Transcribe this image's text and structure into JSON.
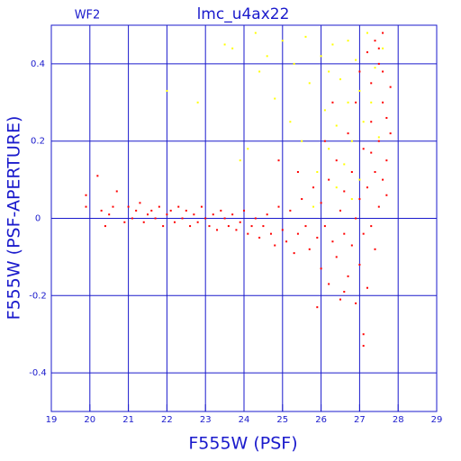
{
  "chart_data": {
    "type": "scatter",
    "title": "lmc_u4ax22",
    "annotation": "WF2",
    "xlabel": "F555W (PSF)",
    "ylabel": "F555W (PSF-APERTURE)",
    "xlim": [
      19,
      29
    ],
    "ylim": [
      -0.5,
      0.5
    ],
    "xticks": [
      19,
      20,
      21,
      22,
      23,
      24,
      25,
      26,
      27,
      28,
      29
    ],
    "yticks": [
      -0.4,
      -0.2,
      0,
      0.2,
      0.4
    ],
    "grid": true,
    "series": [
      {
        "color": "#ff0000",
        "x": [
          19.9,
          19.9,
          20.2,
          20.3,
          20.4,
          20.5,
          20.6,
          20.7,
          20.9,
          21.0,
          21.1,
          21.2,
          21.3,
          21.4,
          21.5,
          21.6,
          21.7,
          21.8,
          21.9,
          22.0,
          22.1,
          22.2,
          22.3,
          22.4,
          22.5,
          22.6,
          22.7,
          22.8,
          22.9,
          23.0,
          23.1,
          23.2,
          23.3,
          23.4,
          23.5,
          23.6,
          23.7,
          23.8,
          23.9,
          24.0,
          24.1,
          24.2,
          24.3,
          24.4,
          24.5,
          24.6,
          24.7,
          24.8,
          24.9,
          25.0,
          25.1,
          25.2,
          25.3,
          25.4,
          25.5,
          25.6,
          25.7,
          25.8,
          25.9,
          26.0,
          26.0,
          26.1,
          26.2,
          26.2,
          26.3,
          26.4,
          26.4,
          26.5,
          26.5,
          26.6,
          26.6,
          26.7,
          26.7,
          26.8,
          26.8,
          26.9,
          26.9,
          26.9,
          27.0,
          27.0,
          27.0,
          27.1,
          27.1,
          27.1,
          27.2,
          27.2,
          27.2,
          27.3,
          27.3,
          27.3,
          27.4,
          27.4,
          27.4,
          27.5,
          27.5,
          27.5,
          27.6,
          27.6,
          27.6,
          27.7,
          27.7,
          27.7,
          27.8,
          27.8,
          27.1,
          26.6,
          25.9,
          24.9,
          25.4,
          26.1,
          27.3,
          27.6,
          27.5,
          26.3
        ],
        "y": [
          0.06,
          0.03,
          0.11,
          0.02,
          -0.02,
          0.01,
          0.03,
          0.07,
          -0.01,
          0.03,
          0.0,
          0.02,
          0.04,
          -0.01,
          0.01,
          0.02,
          0.0,
          0.03,
          -0.02,
          0.01,
          0.02,
          -0.01,
          0.03,
          0.0,
          0.02,
          -0.02,
          0.01,
          -0.01,
          0.03,
          0.0,
          -0.02,
          0.01,
          -0.03,
          0.02,
          0.0,
          -0.02,
          0.01,
          -0.03,
          -0.01,
          0.02,
          -0.04,
          -0.02,
          0.0,
          -0.05,
          -0.02,
          0.01,
          -0.04,
          -0.07,
          0.03,
          -0.03,
          -0.06,
          0.02,
          -0.09,
          -0.04,
          0.05,
          -0.02,
          -0.08,
          0.08,
          -0.05,
          -0.13,
          0.04,
          -0.02,
          0.1,
          -0.17,
          -0.06,
          0.15,
          -0.1,
          0.02,
          -0.21,
          0.07,
          -0.04,
          0.22,
          -0.15,
          0.12,
          -0.07,
          0.3,
          -0.22,
          0.0,
          0.38,
          -0.12,
          0.05,
          0.18,
          -0.3,
          -0.04,
          0.43,
          0.08,
          -0.18,
          0.25,
          -0.02,
          0.35,
          0.12,
          0.46,
          -0.08,
          0.2,
          0.03,
          0.4,
          0.3,
          0.1,
          0.48,
          0.15,
          0.26,
          0.06,
          0.22,
          0.34,
          -0.33,
          -0.19,
          -0.23,
          0.15,
          0.12,
          0.2,
          0.17,
          0.38,
          0.44,
          0.3
        ]
      },
      {
        "color": "#ffff00",
        "x": [
          22.0,
          22.8,
          23.5,
          23.7,
          23.9,
          24.1,
          24.3,
          24.4,
          24.6,
          24.8,
          25.0,
          25.2,
          25.3,
          25.5,
          25.6,
          25.7,
          25.9,
          26.0,
          26.1,
          26.2,
          26.3,
          26.4,
          26.5,
          26.6,
          26.7,
          26.7,
          26.8,
          26.9,
          27.0,
          27.0,
          27.1,
          27.2,
          27.3,
          27.4,
          27.5,
          26.4,
          26.8,
          27.6,
          25.8,
          26.2
        ],
        "y": [
          0.33,
          0.3,
          0.45,
          0.44,
          0.15,
          0.18,
          0.48,
          0.38,
          0.42,
          0.31,
          0.46,
          0.25,
          0.4,
          0.2,
          0.47,
          0.35,
          0.12,
          0.42,
          0.28,
          0.18,
          0.45,
          0.24,
          0.36,
          0.14,
          0.46,
          0.3,
          0.2,
          0.41,
          0.1,
          0.33,
          0.25,
          0.48,
          0.3,
          0.39,
          0.21,
          0.08,
          0.05,
          0.44,
          0.03,
          0.38
        ]
      }
    ]
  }
}
